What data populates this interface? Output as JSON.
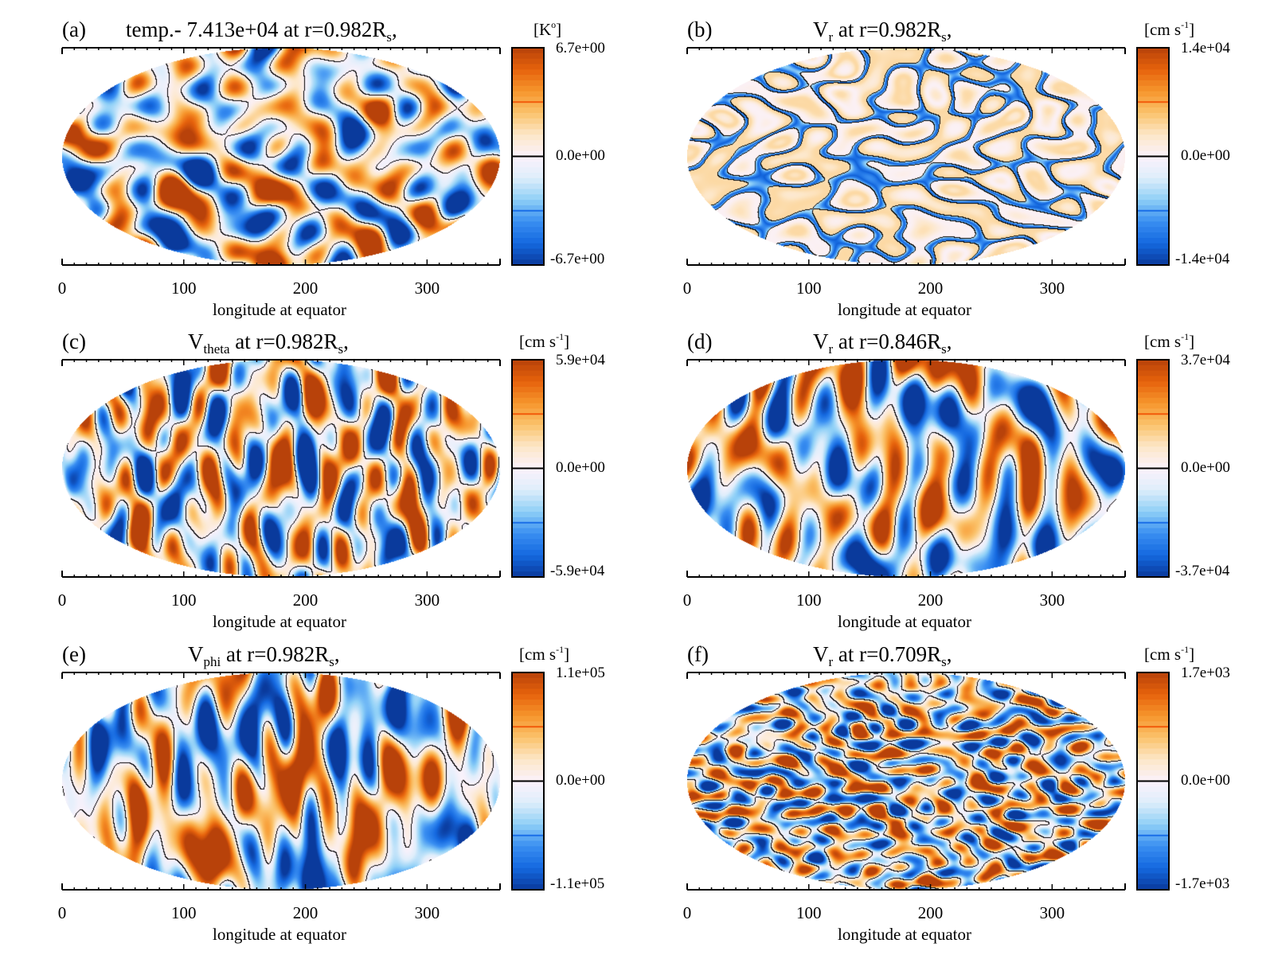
{
  "chart_data": [
    {
      "id": "a",
      "type": "heatmap",
      "projection": "mollweide",
      "panel_label": "(a)",
      "title_prefix": "temp.- 7.413e+04 at r=0.982R",
      "title_var": "",
      "title_sub": "",
      "title_main": "temp.- 7.413e+04 at r=0.982R",
      "title_rs_sub": "s",
      "title_suffix": ",",
      "unit_label": "[K°]",
      "unit_base": "[K",
      "unit_sup": "o",
      "unit_end": "]",
      "colorbar": {
        "max_label": "6.7e+00",
        "mid_label": "0.0e+00",
        "min_label": "-6.7e+00",
        "vmin": -6.7,
        "vmax": 6.7
      },
      "xlabel": "longitude at equator",
      "xticks": [
        0,
        100,
        200,
        300
      ],
      "xlim": [
        0,
        360
      ],
      "pattern": "blobs",
      "seed": 11
    },
    {
      "id": "b",
      "type": "heatmap",
      "projection": "mollweide",
      "panel_label": "(b)",
      "title_var": "V",
      "title_sub": "r",
      "title_main": " at r=0.982R",
      "title_rs_sub": "s",
      "title_suffix": ",",
      "unit_base": "[cm s",
      "unit_sup": "-1",
      "unit_end": "]",
      "colorbar": {
        "max_label": "1.4e+04",
        "mid_label": "0.0e+00",
        "min_label": "-1.4e+04",
        "vmin": -14000,
        "vmax": 14000
      },
      "xlabel": "longitude at equator",
      "xticks": [
        0,
        100,
        200,
        300
      ],
      "xlim": [
        0,
        360
      ],
      "pattern": "network",
      "seed": 23
    },
    {
      "id": "c",
      "type": "heatmap",
      "projection": "mollweide",
      "panel_label": "(c)",
      "title_var": "V",
      "title_sub": "theta",
      "title_main": " at r=0.982R",
      "title_rs_sub": "s",
      "title_suffix": ",",
      "unit_base": "[cm s",
      "unit_sup": "-1",
      "unit_end": "]",
      "colorbar": {
        "max_label": "5.9e+04",
        "mid_label": "0.0e+00",
        "min_label": "-5.9e+04",
        "vmin": -59000,
        "vmax": 59000
      },
      "xlabel": "longitude at equator",
      "xticks": [
        0,
        100,
        200,
        300
      ],
      "xlim": [
        0,
        360
      ],
      "pattern": "streaks",
      "seed": 37
    },
    {
      "id": "d",
      "type": "heatmap",
      "projection": "mollweide",
      "panel_label": "(d)",
      "title_var": "V",
      "title_sub": "r",
      "title_main": " at r=0.846R",
      "title_rs_sub": "s",
      "title_suffix": ",",
      "unit_base": "[cm s",
      "unit_sup": "-1",
      "unit_end": "]",
      "colorbar": {
        "max_label": "3.7e+04",
        "mid_label": "0.0e+00",
        "min_label": "-3.7e+04",
        "vmin": -37000,
        "vmax": 37000
      },
      "xlabel": "longitude at equator",
      "xticks": [
        0,
        100,
        200,
        300
      ],
      "xlim": [
        0,
        360
      ],
      "pattern": "banana",
      "seed": 51
    },
    {
      "id": "e",
      "type": "heatmap",
      "projection": "mollweide",
      "panel_label": "(e)",
      "title_var": "V",
      "title_sub": "phi",
      "title_main": " at r=0.982R",
      "title_rs_sub": "s",
      "title_suffix": ",",
      "unit_base": "[cm s",
      "unit_sup": "-1",
      "unit_end": "]",
      "colorbar": {
        "max_label": "1.1e+05",
        "mid_label": "0.0e+00",
        "min_label": "-1.1e+05",
        "vmin": -110000,
        "vmax": 110000
      },
      "xlabel": "longitude at equator",
      "xticks": [
        0,
        100,
        200,
        300
      ],
      "xlim": [
        0,
        360
      ],
      "pattern": "bands",
      "seed": 67
    },
    {
      "id": "f",
      "type": "heatmap",
      "projection": "mollweide",
      "panel_label": "(f)",
      "title_var": "V",
      "title_sub": "r",
      "title_main": " at r=0.709R",
      "title_rs_sub": "s",
      "title_suffix": ",",
      "unit_base": "[cm s",
      "unit_sup": "-1",
      "unit_end": "]",
      "colorbar": {
        "max_label": "1.7e+03",
        "mid_label": "0.0e+00",
        "min_label": "-1.7e+03",
        "vmin": -1700,
        "vmax": 1700
      },
      "xlabel": "longitude at equator",
      "xticks": [
        0,
        100,
        200,
        300
      ],
      "xlim": [
        0,
        360
      ],
      "pattern": "fine",
      "seed": 83
    }
  ],
  "colormap": {
    "stops": [
      "#0a3a9c",
      "#1569e0",
      "#3a8ff2",
      "#8fd0f7",
      "#dfeefb",
      "#fbf2fb",
      "#fde7c8",
      "#fbc36c",
      "#f7962c",
      "#e6620c",
      "#b8420a"
    ],
    "zero_line_color": "#000000",
    "upper_level_color": "#f25a0a",
    "lower_level_color": "#1a6fe8"
  }
}
